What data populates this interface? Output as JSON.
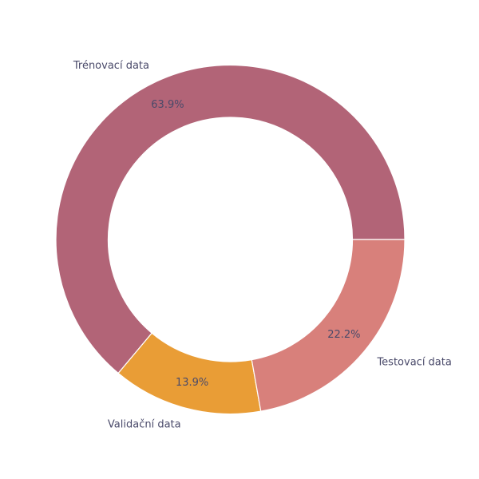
{
  "chart_data": {
    "type": "pie",
    "variant": "donut",
    "start_direction": "counterclockwise from 3 o'clock",
    "slices": [
      {
        "label": "Trénovací data",
        "value": 63.9,
        "pct_label": "63.9%",
        "color": "#b26477"
      },
      {
        "label": "Validační data",
        "value": 13.9,
        "pct_label": "13.9%",
        "color": "#e99d36"
      },
      {
        "label": "Testovací data",
        "value": 22.2,
        "pct_label": "22.2%",
        "color": "#d8807b"
      }
    ],
    "title": "",
    "legend": "none"
  }
}
